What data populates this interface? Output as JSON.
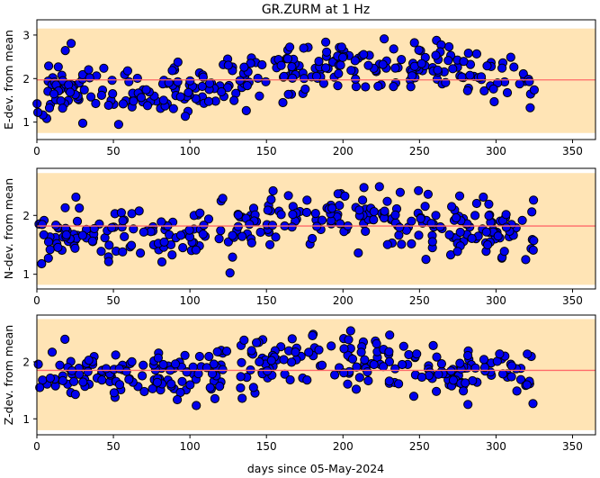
{
  "title": "GR.ZURM at 1 Hz",
  "xlabel": "days since 05-May-2024",
  "colors": {
    "band": "#ffe4b5",
    "mean_line": "#ff6a6a",
    "marker_fill": "#0000ee",
    "marker_edge": "#000000"
  },
  "chart_data": [
    {
      "type": "scatter",
      "ylabel": "E-dev. from mean",
      "xlim": [
        0,
        365
      ],
      "ylim": [
        0.6,
        3.35
      ],
      "xticks": [
        0,
        50,
        100,
        150,
        200,
        250,
        300,
        350
      ],
      "yticks": [
        1,
        2,
        3
      ],
      "band": [
        0.75,
        3.15
      ],
      "mean": 1.97,
      "x_range": [
        0,
        325
      ],
      "n_points": 310,
      "trend": [
        [
          0,
          1.65
        ],
        [
          100,
          1.82
        ],
        [
          150,
          2.15
        ],
        [
          200,
          2.25
        ],
        [
          260,
          2.2
        ],
        [
          325,
          1.95
        ]
      ],
      "spread": 0.42,
      "seed": 11,
      "grid": false
    },
    {
      "type": "scatter",
      "ylabel": "N-dev. from mean",
      "xlim": [
        0,
        365
      ],
      "ylim": [
        0.75,
        2.8
      ],
      "xticks": [
        0,
        50,
        100,
        150,
        200,
        250,
        300,
        350
      ],
      "yticks": [
        1,
        2
      ],
      "band": [
        0.82,
        2.72
      ],
      "mean": 1.82,
      "x_range": [
        0,
        325
      ],
      "n_points": 310,
      "trend": [
        [
          0,
          1.65
        ],
        [
          100,
          1.72
        ],
        [
          150,
          1.95
        ],
        [
          200,
          2.0
        ],
        [
          260,
          1.8
        ],
        [
          325,
          1.75
        ]
      ],
      "spread": 0.3,
      "seed": 23,
      "grid": false
    },
    {
      "type": "scatter",
      "ylabel": "Z-dev. from mean",
      "xlim": [
        0,
        365
      ],
      "ylim": [
        0.72,
        2.82
      ],
      "xticks": [
        0,
        50,
        100,
        150,
        200,
        250,
        300,
        350
      ],
      "yticks": [
        1,
        2
      ],
      "band": [
        0.8,
        2.75
      ],
      "mean": 1.85,
      "x_range": [
        0,
        325
      ],
      "n_points": 310,
      "trend": [
        [
          0,
          1.7
        ],
        [
          100,
          1.78
        ],
        [
          150,
          1.95
        ],
        [
          200,
          2.05
        ],
        [
          260,
          1.8
        ],
        [
          325,
          1.8
        ]
      ],
      "spread": 0.3,
      "seed": 37,
      "grid": false
    }
  ]
}
